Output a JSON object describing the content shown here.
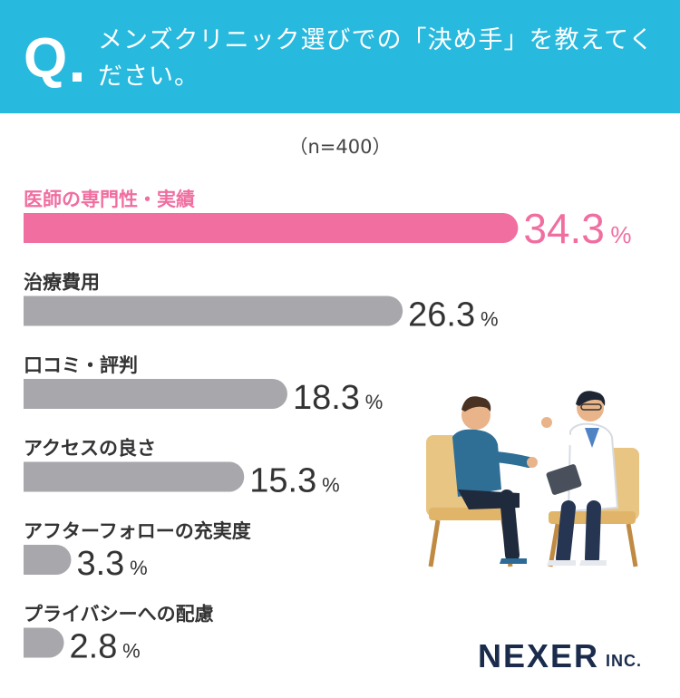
{
  "header": {
    "q_mark": "Q",
    "question": "メンズクリニック選びでの「決め手」を教えてください。"
  },
  "chart_data": {
    "type": "bar",
    "orientation": "horizontal",
    "sample_note": "（n=400）",
    "categories": [
      "医師の専門性・実績",
      "治療費用",
      "口コミ・評判",
      "アクセスの良さ",
      "アフターフォローの充実度",
      "プライバシーへの配慮"
    ],
    "values": [
      34.3,
      26.3,
      18.3,
      15.3,
      3.3,
      2.8
    ],
    "value_labels": [
      "34.3",
      "26.3",
      "18.3",
      "15.3",
      "3.3",
      "2.8"
    ],
    "unit": "%",
    "highlight_index": 0,
    "colors": {
      "highlight": "#f06ea0",
      "default": "#a7a7ac",
      "label": "#333333"
    }
  },
  "logo": {
    "main": "NEXER",
    "sub": "INC."
  }
}
